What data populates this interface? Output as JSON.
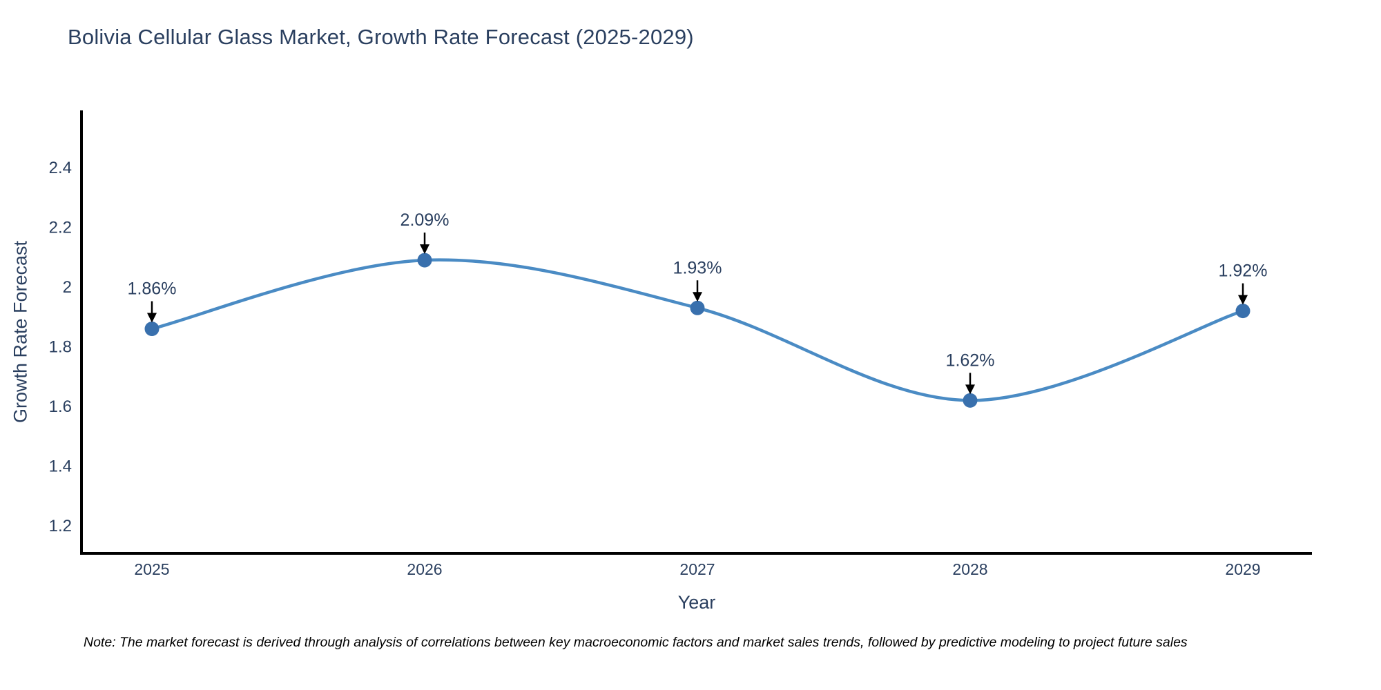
{
  "title": "Bolivia Cellular Glass Market, Growth Rate Forecast (2025-2029)",
  "note": "Note: The market forecast is derived through analysis of correlations between key macroeconomic factors and market sales trends, followed by predictive modeling to project future sales",
  "chart_data": {
    "type": "line",
    "line_shape": "spline",
    "title": "Bolivia Cellular Glass Market, Growth Rate Forecast (2025-2029)",
    "xlabel": "Year",
    "ylabel": "Growth Rate Forecast",
    "x": [
      2025,
      2026,
      2027,
      2028,
      2029
    ],
    "series": [
      {
        "name": "Growth Rate Forecast",
        "values": [
          1.86,
          2.09,
          1.93,
          1.62,
          1.92
        ]
      }
    ],
    "point_labels": [
      "1.86%",
      "2.09%",
      "1.93%",
      "1.62%",
      "1.92%"
    ],
    "ytick_labels": [
      "2.4",
      "2.2",
      "2",
      "1.8",
      "1.6",
      "1.4",
      "1.2"
    ],
    "ylim": [
      1.11,
      2.59
    ],
    "grid": false,
    "legend_position": "none",
    "annotation_style": "text-with-down-arrow",
    "colors": {
      "line": "#4a8bc4",
      "marker": "#3970ad",
      "arrow": "#000000",
      "axis": "#000000",
      "tick_text": "#2a3f5f",
      "annotation_text": "#2a3f5f",
      "title_text": "#2a3f5f"
    }
  }
}
